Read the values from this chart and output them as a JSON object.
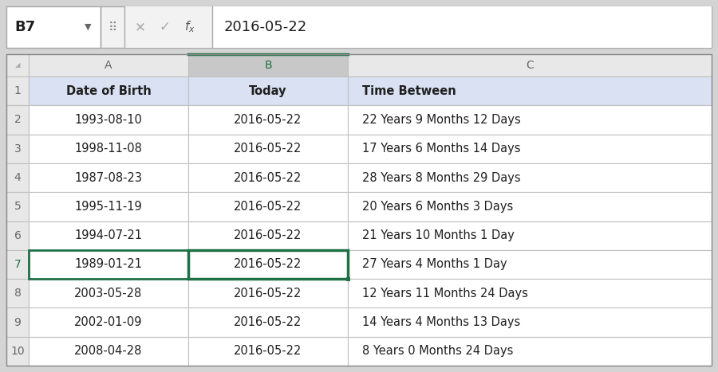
{
  "formula_bar_cell": "B7",
  "formula_bar_value": "2016-05-22",
  "col_headers": [
    "A",
    "B",
    "C"
  ],
  "row_headers": [
    "1",
    "2",
    "3",
    "4",
    "5",
    "6",
    "7",
    "8",
    "9",
    "10"
  ],
  "header_row": [
    "Date of Birth",
    "Today",
    "Time Between"
  ],
  "col_A": [
    "1993-08-10",
    "1998-11-08",
    "1987-08-23",
    "1995-11-19",
    "1994-07-21",
    "1989-01-21",
    "2003-05-28",
    "2002-01-09",
    "2008-04-28"
  ],
  "col_B": [
    "2016-05-22",
    "2016-05-22",
    "2016-05-22",
    "2016-05-22",
    "2016-05-22",
    "2016-05-22",
    "2016-05-22",
    "2016-05-22",
    "2016-05-22"
  ],
  "col_C": [
    "22 Years 9 Months 12 Days",
    "17 Years 6 Months 14 Days",
    "28 Years 8 Months 29 Days",
    "20 Years 6 Months 3 Days",
    "21 Years 10 Months 1 Day",
    "27 Years 4 Months 1 Day",
    "12 Years 11 Months 24 Days",
    "14 Years 4 Months 13 Days",
    "8 Years 0 Months 24 Days"
  ],
  "selected_col": 1,
  "selected_grid_row": 7,
  "outer_bg": "#D4D4D4",
  "fb_bg": "#F2F2F2",
  "cell_name_bg": "#FFFFFF",
  "icon_area_bg": "#F2F2F2",
  "formula_val_bg": "#FFFFFF",
  "header_bg": "#E0E0E8",
  "col_header_normal_bg": "#E8E8E8",
  "col_header_selected_bg": "#C8C8C8",
  "data_row_bg": "#FFFFFF",
  "header_row_bg": "#D9E1F2",
  "selected_cell_border": "#1E7145",
  "grid_line_color": "#C0C0C0",
  "text_dark": "#1F1F1F",
  "text_gray": "#666666",
  "text_green": "#1E7145"
}
